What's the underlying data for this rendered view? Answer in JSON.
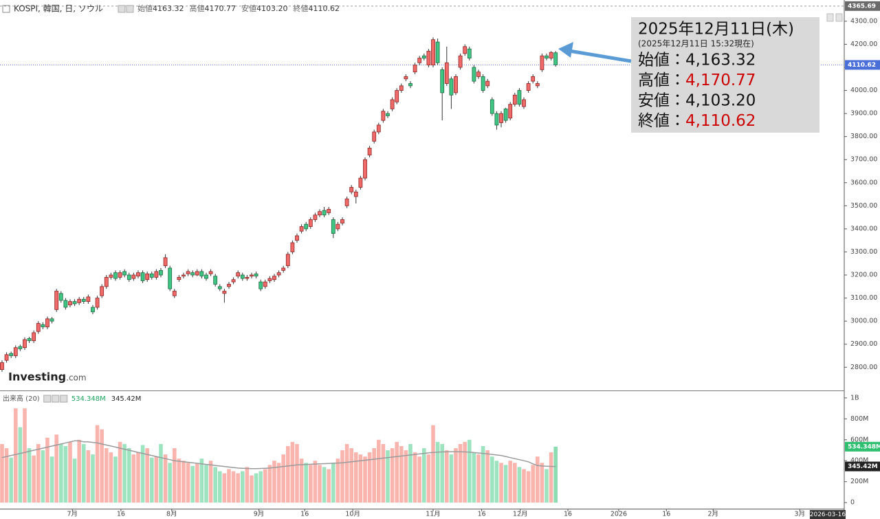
{
  "chart_data": [
    {
      "type": "candlestick",
      "title": "KOSPI, 韓国, 日, ソウル",
      "header": [
        {
          "name": "始値",
          "value": "4163.32"
        },
        {
          "name": "高値",
          "value": "4170.77"
        },
        {
          "name": "安値",
          "value": "4103.20"
        },
        {
          "name": "終値",
          "value": "4110.62"
        }
      ],
      "open": [
        2790,
        2830,
        2860,
        2850,
        2890,
        2885,
        2925,
        2915,
        2955,
        2985,
        2975,
        3010,
        3050,
        3120,
        3090,
        3070,
        3085,
        3080,
        3095,
        3085,
        3060,
        3060,
        3110,
        3150,
        3190,
        3210,
        3190,
        3215,
        3200,
        3185,
        3195,
        3210,
        3180,
        3205,
        3190,
        3220,
        3240,
        3230,
        3110,
        3180,
        3195,
        3205,
        3210,
        3200,
        3215,
        3200,
        3205,
        3195,
        3150,
        3120,
        3150,
        3170,
        3195,
        3200,
        3185,
        3195,
        3205,
        3170,
        3150,
        3175,
        3180,
        3200,
        3220,
        3240,
        3300,
        3350,
        3390,
        3420,
        3410,
        3440,
        3460,
        3480,
        3470,
        3440,
        3400,
        3425,
        3500,
        3560,
        3540,
        3580,
        3620,
        3720,
        3780,
        3820,
        3870,
        3900,
        3920,
        3950,
        4000,
        4050,
        4030,
        4080,
        4120,
        4150,
        4110,
        4110,
        4210,
        4090,
        4030,
        4050,
        3990,
        4100,
        4160,
        4180,
        4100,
        4060,
        4060,
        4020,
        3960,
        3900,
        3860,
        3920,
        3880,
        3940,
        4000,
        3930,
        4000,
        4040,
        4020,
        4090,
        4150,
        4140,
        4163.32
      ],
      "high": [
        2830,
        2865,
        2868,
        2895,
        2898,
        2930,
        2932,
        2960,
        3000,
        2995,
        3020,
        3018,
        3140,
        3130,
        3100,
        3095,
        3095,
        3105,
        3105,
        3115,
        3070,
        3110,
        3160,
        3200,
        3210,
        3220,
        3220,
        3225,
        3210,
        3210,
        3220,
        3220,
        3215,
        3215,
        3225,
        3230,
        3290,
        3240,
        3140,
        3200,
        3210,
        3225,
        3220,
        3225,
        3225,
        3210,
        3225,
        3205,
        3160,
        3140,
        3170,
        3190,
        3220,
        3210,
        3200,
        3210,
        3215,
        3180,
        3180,
        3195,
        3205,
        3220,
        3240,
        3300,
        3350,
        3380,
        3420,
        3430,
        3450,
        3470,
        3485,
        3495,
        3495,
        3450,
        3430,
        3450,
        3540,
        3590,
        3570,
        3630,
        3710,
        3760,
        3830,
        3860,
        3920,
        3910,
        3970,
        4010,
        4030,
        4070,
        4040,
        4120,
        4150,
        4160,
        4180,
        4230,
        4225,
        4100,
        4190,
        4060,
        4070,
        4160,
        4200,
        4190,
        4110,
        4090,
        4070,
        4050,
        3970,
        3910,
        3910,
        3925,
        3950,
        3990,
        4010,
        3970,
        4040,
        4070,
        4040,
        4160,
        4160,
        4170,
        4170.77
      ],
      "low": [
        2780,
        2820,
        2840,
        2840,
        2870,
        2875,
        2905,
        2905,
        2945,
        2965,
        2965,
        2990,
        3040,
        3080,
        3050,
        3060,
        3065,
        3070,
        3075,
        3075,
        3030,
        3050,
        3100,
        3140,
        3180,
        3175,
        3180,
        3190,
        3170,
        3175,
        3185,
        3165,
        3170,
        3180,
        3180,
        3190,
        3230,
        3130,
        3100,
        3170,
        3185,
        3195,
        3190,
        3195,
        3185,
        3175,
        3195,
        3150,
        3130,
        3080,
        3140,
        3160,
        3185,
        3175,
        3175,
        3185,
        3185,
        3130,
        3140,
        3165,
        3170,
        3190,
        3210,
        3230,
        3290,
        3340,
        3380,
        3390,
        3400,
        3430,
        3450,
        3450,
        3460,
        3360,
        3390,
        3415,
        3490,
        3550,
        3510,
        3570,
        3610,
        3710,
        3770,
        3810,
        3860,
        3880,
        3910,
        3940,
        3990,
        4040,
        4010,
        4070,
        4110,
        4130,
        4100,
        4100,
        4110,
        3870,
        4020,
        3920,
        3980,
        4090,
        4150,
        4130,
        4030,
        4050,
        3990,
        4010,
        3890,
        3830,
        3840,
        3860,
        3870,
        3930,
        3930,
        3920,
        3990,
        4030,
        4010,
        4080,
        4130,
        4130,
        4103.2
      ],
      "close": [
        2820,
        2855,
        2850,
        2885,
        2880,
        2920,
        2915,
        2950,
        2990,
        2975,
        3010,
        3000,
        3130,
        3090,
        3060,
        3085,
        3075,
        3095,
        3085,
        3105,
        3040,
        3100,
        3150,
        3190,
        3200,
        3185,
        3210,
        3200,
        3180,
        3200,
        3210,
        3175,
        3205,
        3190,
        3215,
        3200,
        3275,
        3140,
        3130,
        3190,
        3200,
        3215,
        3200,
        3215,
        3195,
        3185,
        3215,
        3160,
        3140,
        3130,
        3160,
        3180,
        3210,
        3185,
        3190,
        3200,
        3195,
        3140,
        3170,
        3185,
        3195,
        3210,
        3230,
        3290,
        3340,
        3370,
        3410,
        3400,
        3440,
        3460,
        3475,
        3460,
        3485,
        3380,
        3420,
        3440,
        3530,
        3580,
        3560,
        3620,
        3700,
        3750,
        3820,
        3850,
        3910,
        3890,
        3960,
        4000,
        4020,
        4060,
        4020,
        4110,
        4140,
        4140,
        4170,
        4220,
        4120,
        3990,
        4120,
        3980,
        4060,
        4150,
        4190,
        4140,
        4040,
        4080,
        4000,
        4040,
        3900,
        3850,
        3900,
        3870,
        3940,
        3980,
        3940,
        3960,
        4030,
        4060,
        4030,
        4150,
        4140,
        4165,
        4110.62
      ],
      "up_color": "#f06a6a",
      "down_color": "#3fc584",
      "up_stroke": "#8b2323",
      "down_stroke": "#1f6b43",
      "wick_color": "#333333",
      "ylim": [
        2699.5,
        4392
      ],
      "yticks": [
        {
          "value": 2800,
          "label": "2800.00"
        },
        {
          "value": 2900,
          "label": "2900.00"
        },
        {
          "value": 3000,
          "label": "3000.00"
        },
        {
          "value": 3100,
          "label": "3100.00"
        },
        {
          "value": 3200,
          "label": "3200.00"
        },
        {
          "value": 3300,
          "label": "3300.00"
        },
        {
          "value": 3400,
          "label": "3400.00"
        },
        {
          "value": 3500,
          "label": "3500.00"
        },
        {
          "value": 3600,
          "label": "3600.00"
        },
        {
          "value": 3700,
          "label": "3700.00"
        },
        {
          "value": 3800,
          "label": "3800.00"
        },
        {
          "value": 3900,
          "label": "3900.00"
        },
        {
          "value": 4000,
          "label": "4000.00"
        },
        {
          "value": 4100,
          "label": "4100.00"
        },
        {
          "value": 4200,
          "label": "4200.00"
        },
        {
          "value": 4300,
          "label": "4300.00"
        }
      ],
      "range_high": 4365.69,
      "xlim": [
        -0.45,
        185.6
      ],
      "xticks": [
        {
          "value": 15.5,
          "label": "7月"
        },
        {
          "value": 26.2,
          "label": "16"
        },
        {
          "value": 37.4,
          "label": "8月"
        },
        {
          "value": 56.6,
          "label": "9月"
        },
        {
          "value": 66.7,
          "label": "16"
        },
        {
          "value": 77.3,
          "label": "10月"
        },
        {
          "value": 95.0,
          "label": "11月"
        },
        {
          "value": 105.7,
          "label": "16"
        },
        {
          "value": 114.2,
          "label": "12月"
        },
        {
          "value": 124.7,
          "label": "16"
        },
        {
          "value": 135.9,
          "label": "2026"
        },
        {
          "value": 146.4,
          "label": "16"
        },
        {
          "value": 156.7,
          "label": "2月"
        },
        {
          "value": 175.8,
          "label": "3月"
        }
      ],
      "cursor_date": {
        "value": 181.8,
        "label": "2026-03-16"
      },
      "watermark": {
        "brand": "Investing",
        "suffix": ".com"
      },
      "callout": {
        "title": "2025年12月11日(木)",
        "subtitle": "(2025年12月11日 15:32現在)",
        "rows": [
          {
            "label": "始値：",
            "value": "4,163.32",
            "color": "#111111"
          },
          {
            "label": "高値：",
            "value": "4,170.77",
            "color": "#cc0000"
          },
          {
            "label": "安値：",
            "value": "4,103.20",
            "color": "#111111"
          },
          {
            "label": "終値：",
            "value": "4,110.62",
            "color": "#cc0000"
          }
        ]
      }
    },
    {
      "type": "bar",
      "name": "出来高 (20)",
      "values": [
        560,
        520,
        430,
        900,
        720,
        900,
        520,
        450,
        560,
        500,
        620,
        440,
        650,
        560,
        540,
        580,
        420,
        600,
        560,
        500,
        460,
        740,
        700,
        520,
        480,
        440,
        580,
        560,
        520,
        460,
        480,
        550,
        520,
        430,
        440,
        560,
        460,
        380,
        520,
        420,
        400,
        380,
        350,
        370,
        420,
        360,
        400,
        340,
        300,
        280,
        320,
        300,
        280,
        300,
        340,
        260,
        280,
        300,
        320,
        360,
        400,
        380,
        460,
        540,
        580,
        560,
        420,
        380,
        360,
        400,
        360,
        340,
        320,
        380,
        420,
        500,
        560,
        520,
        480,
        460,
        440,
        480,
        520,
        600,
        560,
        500,
        520,
        580,
        540,
        500,
        560,
        480,
        440,
        520,
        460,
        740,
        580,
        560,
        500,
        460,
        520,
        560,
        580,
        600,
        480,
        460,
        540,
        500,
        440,
        400,
        380,
        360,
        400,
        380,
        340,
        320,
        300,
        360,
        440,
        380,
        320,
        480,
        534.348
      ],
      "last_label": "534.348M",
      "up_color": "#f9b4ae",
      "down_color": "#9de3c0",
      "last_color": "#2fbf71",
      "ma": {
        "values": [
          430,
          440,
          450,
          460,
          470,
          480,
          490,
          500,
          510,
          520,
          530,
          540,
          550,
          560,
          570,
          580,
          590,
          590,
          580,
          580,
          575,
          570,
          560,
          550,
          540,
          530,
          520,
          510,
          500,
          490,
          480,
          470,
          460,
          450,
          440,
          430,
          420,
          410,
          400,
          395,
          390,
          385,
          380,
          375,
          370,
          365,
          360,
          355,
          350,
          345,
          340,
          335,
          330,
          328,
          326,
          325,
          325,
          326,
          328,
          330,
          335,
          340,
          345,
          350,
          355,
          360,
          362,
          364,
          366,
          368,
          370,
          372,
          374,
          376,
          378,
          380,
          385,
          390,
          395,
          400,
          405,
          410,
          415,
          420,
          425,
          430,
          435,
          440,
          445,
          450,
          455,
          460,
          465,
          470,
          475,
          480,
          482,
          484,
          485,
          486,
          486,
          485,
          484,
          482,
          478,
          474,
          470,
          465,
          460,
          455,
          450,
          440,
          430,
          420,
          410,
          400,
          390,
          370,
          355,
          350,
          348,
          346,
          345.42
        ],
        "color": "#9a9a9a",
        "last_label": "345.42M"
      },
      "ylim": [
        -58,
        1045
      ],
      "yticks": [
        0,
        {
          "value": 200,
          "label": "200M"
        },
        {
          "value": 400,
          "label": "400M"
        },
        {
          "value": 600,
          "label": "600M"
        },
        {
          "value": 800,
          "label": "800M"
        },
        {
          "value": 1000,
          "label": "1B"
        }
      ]
    }
  ]
}
